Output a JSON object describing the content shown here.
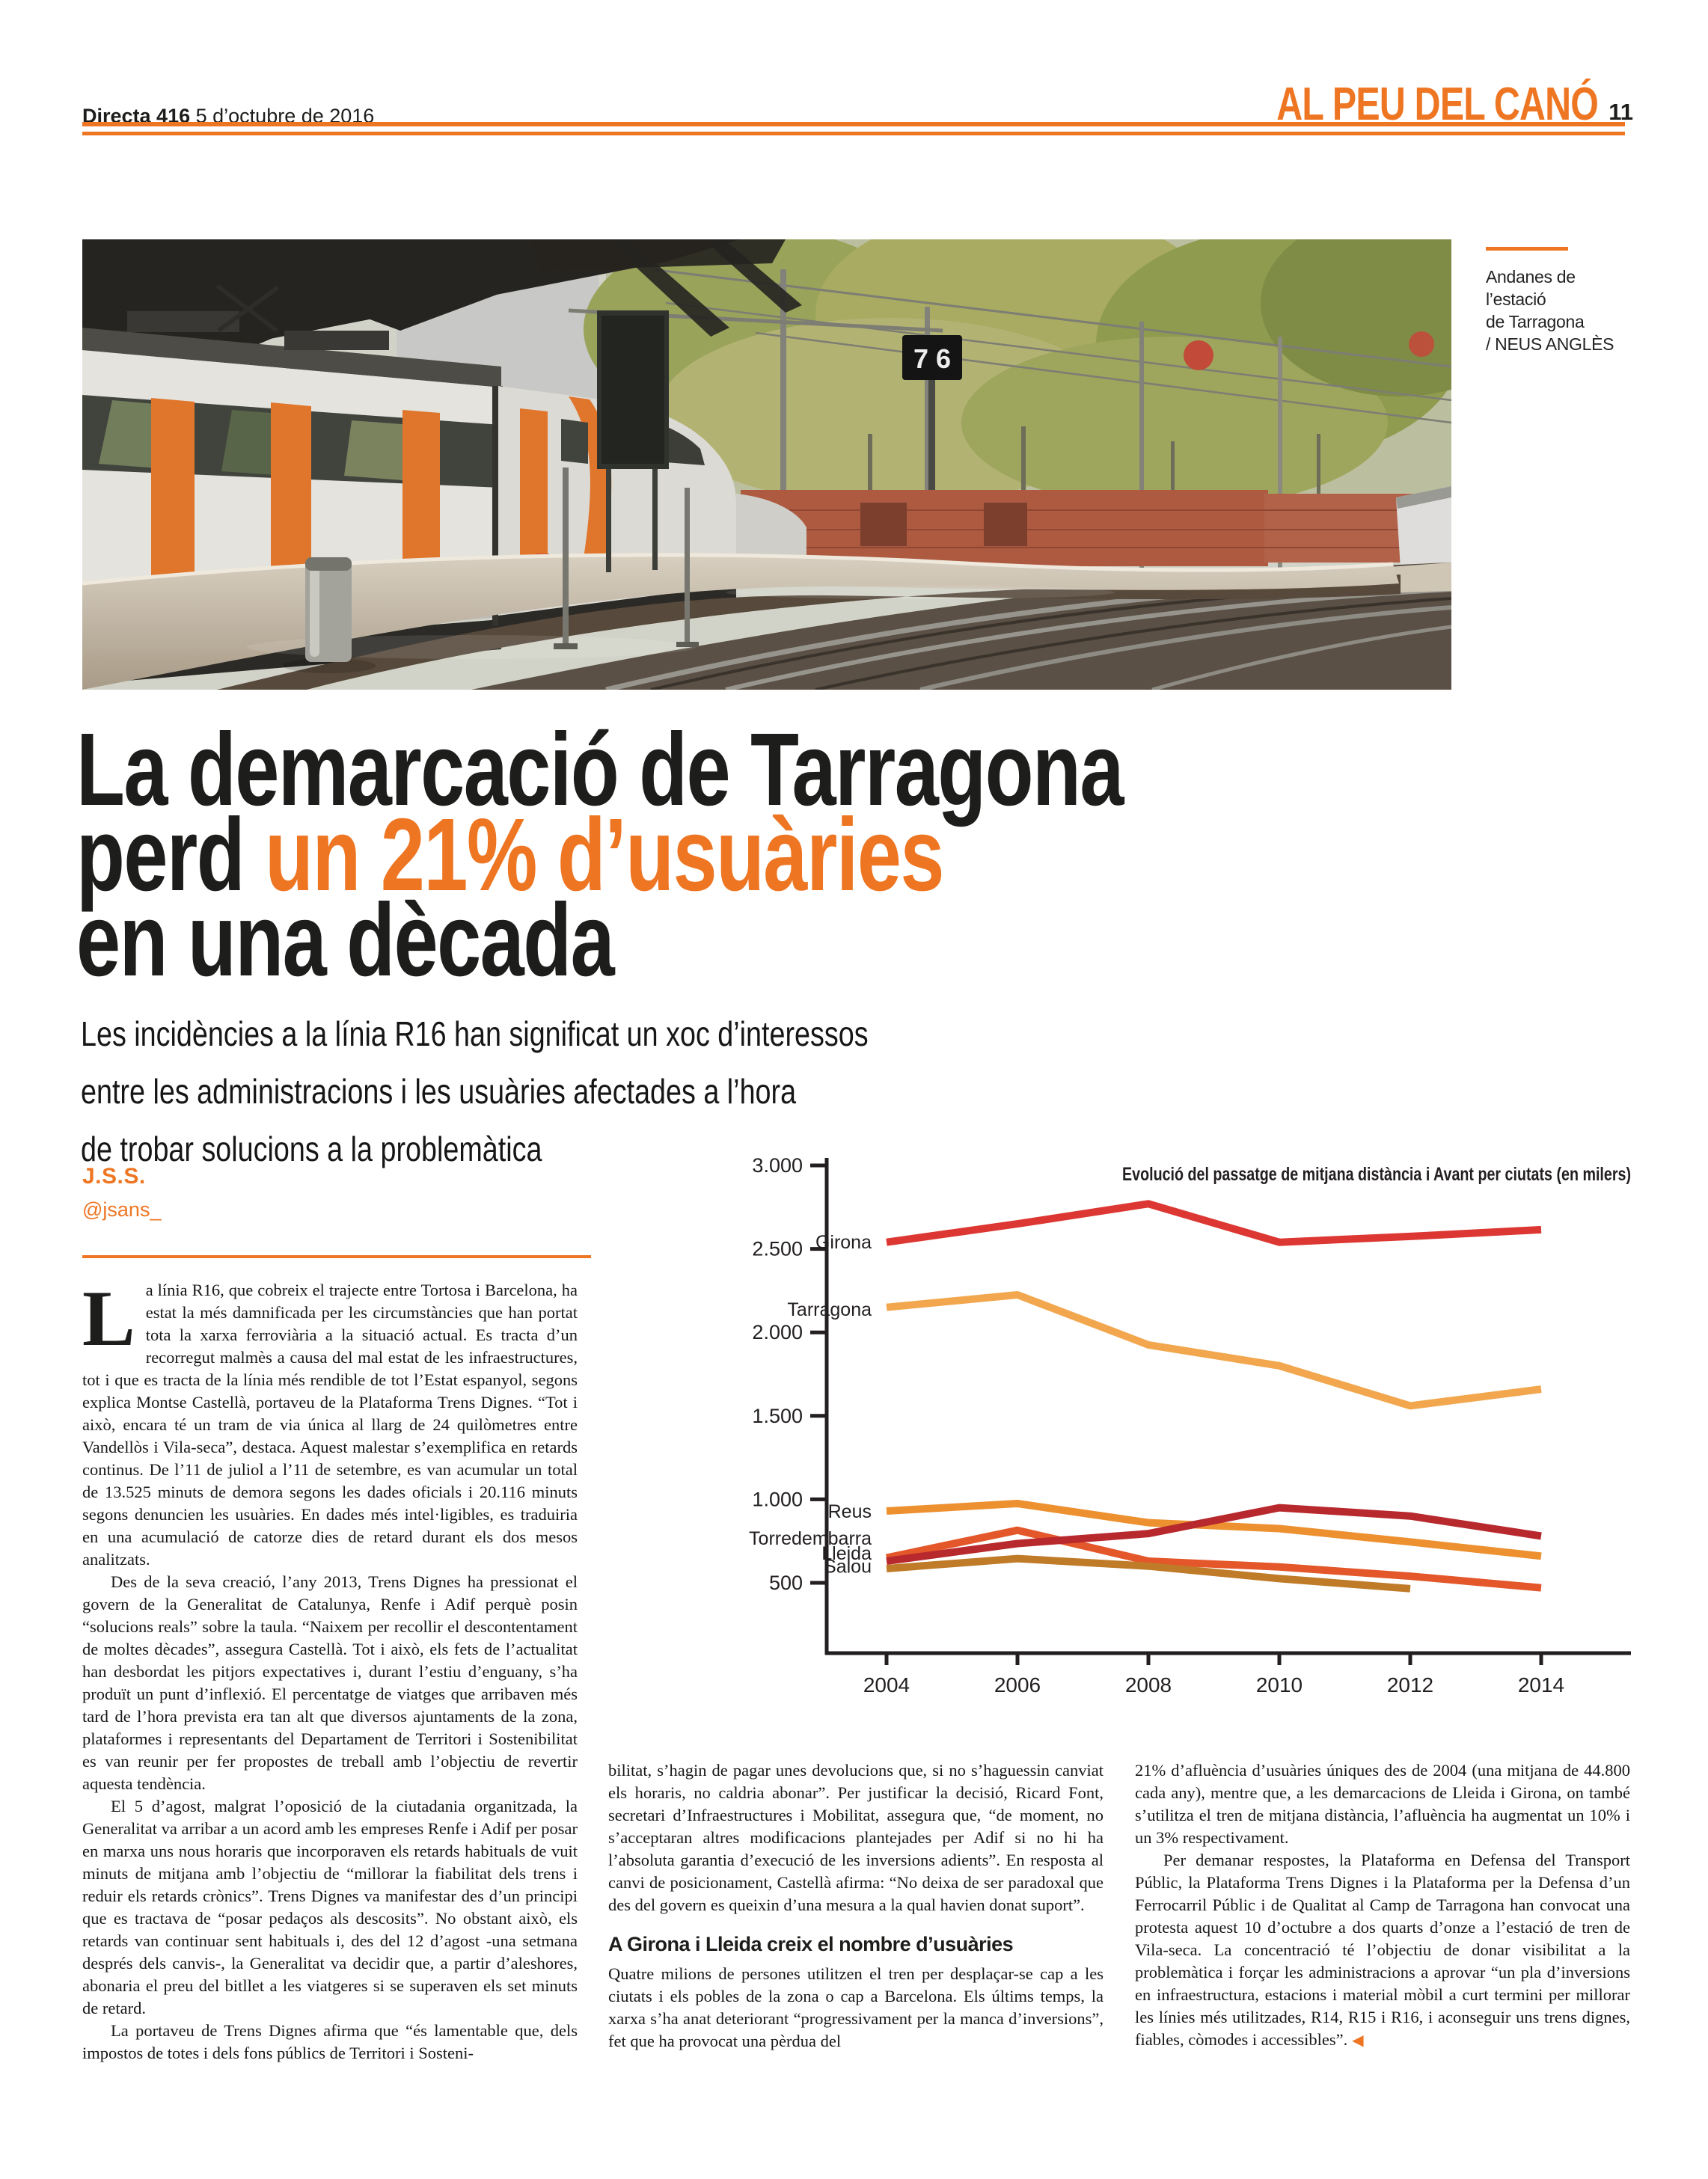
{
  "colors": {
    "accent": "#ee7623",
    "ink": "#1d1d1b"
  },
  "header": {
    "issue": "Directa 416",
    "date": "5 d’octubre de 2016",
    "section": "AL PEU DEL CANÓ",
    "page": "11"
  },
  "photo": {
    "caption_line1": "Andanes de l’estació",
    "caption_line2": "de Tarragona",
    "credit": "/ NEUS ANGLÈS",
    "sign_text": "7 6"
  },
  "headline": {
    "line1": "La demarcació de Tarragona",
    "line2_black": "perd ",
    "line2_accent": "un 21% d’usuàries",
    "line3": "en una dècada"
  },
  "standfirst": {
    "lines": [
      "Les incidències a la línia R16 han significat un xoc d’interessos",
      "entre les administracions i les usuàries afectades a l’hora",
      "de trobar solucions a la problemàtica"
    ]
  },
  "byline": {
    "author": "J.S.S.",
    "handle": "@jsans_"
  },
  "article": {
    "col1": {
      "dropcap": "L",
      "p1": "a línia R16, que cobreix el trajecte entre Tortosa i Barcelona, ha estat la més damnificada per les circumstàncies que han portat tota la xarxa ferroviària a la situació actual. Es tracta d’un recorregut malmès a causa del mal estat de les infraestructures, tot i que es tracta de la línia més rendible de tot l’Estat espanyol, segons explica Montse Castellà, portaveu de la Plataforma Trens Dignes. “Tot i això, encara té un tram de via única al llarg de 24 quilòmetres entre Vandellòs i Vila-seca”, destaca. Aquest malestar s’exemplifica en retards continus. De l’11 de juliol a l’11 de setembre, es van acumular un total de 13.525 minuts de demora segons les dades oficials i 20.116 minuts segons denuncien les usuàries. En dades més intel·ligibles, es traduiria en una acumulació de catorze dies de retard durant els dos mesos analitzats.",
      "p2": "Des de la seva creació, l’any 2013, Trens Dignes ha pressionat el govern de la Generalitat de Catalunya, Renfe i Adif perquè posin “solucions reals” sobre la taula. “Naixem per recollir el descontentament de moltes dècades”, assegura Castellà. Tot i això, els fets de l’actualitat han desbordat les pitjors expectatives i, durant l’estiu d’enguany, s’ha produït un punt d’inflexió. El percentatge de viatges que arribaven més tard de l’hora prevista era tan alt que diversos ajuntaments de la zona, plataformes i representants del Departament de Territori i Sostenibilitat es van reunir per fer propostes de treball amb l’objectiu de revertir aquesta tendència.",
      "p3": "El 5 d’agost, malgrat l’oposició de la ciutadania organitzada, la Generalitat va arribar a un acord amb les empreses Renfe i Adif per posar en marxa uns nous horaris que incorporaven els retards habituals de vuit minuts de mitjana amb l’objectiu de “millorar la fiabilitat dels trens i reduir els retards crònics”. Trens Dignes va manifestar des d’un principi que es tractava de “posar pedaços als descosits”. No obstant això, els retards van continuar sent habituals i, des del 12 d’agost -una setmana després dels canvis-, la Generalitat va decidir que, a partir d’aleshores, abonaria el preu del bitllet a les viatgeres si se superaven els set minuts de retard.",
      "p4": "La portaveu de Trens Dignes afirma que “és lamentable que, dels impostos de totes i dels fons públics de Territori i Sosteni-"
    },
    "col2": {
      "p1": "bilitat, s’hagin de pagar unes devolucions que, si no s’haguessin canviat els horaris, no caldria abonar”. Per justificar la decisió, Ricard Font, secretari d’Infraestructures i Mobilitat, assegura que, “de moment, no s’acceptaran altres modificacions plantejades per Adif si no hi ha l’absoluta garantia d’execució de les inversions adients”. En resposta al canvi de posicionament, Castellà afirma: “No deixa de ser paradoxal que des del govern es queixin d’una mesura a la qual havien donat suport”.",
      "subhead": "A Girona i Lleida creix el nombre d’usuàries",
      "p2": "Quatre milions de persones utilitzen el tren per desplaçar-se cap a les ciutats i els pobles de la zona o cap a Barcelona. Els últims temps, la xarxa s’ha anat deteriorant “progressivament per la manca d’inversions”, fet que ha provocat una pèrdua del"
    },
    "col3": {
      "p1": "21% d’afluència d’usuàries úniques des de 2004 (una mitjana de 44.800 cada any), mentre que, a les demarcacions de Lleida i Girona, on també s’utilitza el tren de mitjana distància, l’afluència ha augmentat un 10% i un 3% respectivament.",
      "p2": "Per demanar respostes, la Plataforma en Defensa del Transport Públic, la Plataforma Trens Dignes i la Plataforma per la Defensa d’un Ferrocarril Públic i de Qualitat al Camp de Tarragona han convocat una protesta aquest 10 d’octubre a dos quarts d’onze a l’estació de tren de Vila-seca. La concentració té l’objectiu de donar visibilitat a la problemàtica i forçar les administracions a aprovar “un pla d’inversions en infraestructura, estacions i material mòbil a curt termini per millorar les línies més utilitzades, R14, R15 i R16, i aconseguir uns trens dignes, fiables, còmodes i accessibles”.",
      "endmark": "◀"
    }
  },
  "chart_data": {
    "type": "line",
    "title": "Evolució del passatge de mitjana distància i Avant per ciutats (en milers)",
    "x": [
      2004,
      2006,
      2008,
      2010,
      2012,
      2014
    ],
    "x_tick_labels": [
      "2004",
      "2006",
      "2008",
      "2010",
      "2012",
      "2014"
    ],
    "y_tick_labels": [
      "500",
      "1.000",
      "1.500",
      "2.000",
      "2.500",
      "3.000"
    ],
    "ylim": [
      0,
      3000
    ],
    "grid": false,
    "legend_position": "inline-left",
    "series": [
      {
        "name": "Girona",
        "color": "#dc3732",
        "label_at": 2543,
        "values": [
          2540,
          2650,
          2770,
          2540,
          2575,
          2615
        ]
      },
      {
        "name": "Tarragona",
        "color": "#f2a74e",
        "label_at": 2140,
        "values": [
          2150,
          2225,
          1925,
          1800,
          1560,
          1660
        ]
      },
      {
        "name": "Reus",
        "color": "#ed9030",
        "label_at": 930,
        "values": [
          930,
          975,
          860,
          825,
          745,
          660
        ]
      },
      {
        "name": "Torredembarra",
        "color": "#e4572a",
        "label_at": 769,
        "values": [
          650,
          815,
          630,
          595,
          540,
          470
        ]
      },
      {
        "name": "Lleida",
        "color": "#b8292e",
        "label_at": 679,
        "values": [
          630,
          735,
          795,
          950,
          900,
          780
        ]
      },
      {
        "name": "Salou",
        "color": "#bf7b28",
        "label_at": 600,
        "values": [
          585,
          645,
          600,
          525,
          465,
          null
        ]
      }
    ]
  }
}
